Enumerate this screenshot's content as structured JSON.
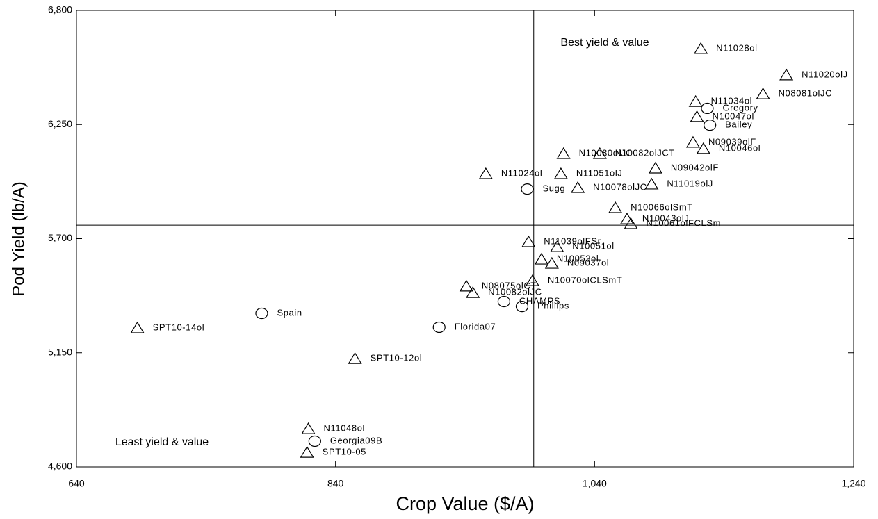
{
  "chart_data": {
    "type": "scatter",
    "xlabel": "Crop Value ($/A)",
    "ylabel": "Pod Yield (lb/A)",
    "annotations": [
      "Best yield & value",
      "Least yield & value"
    ],
    "xlim": [
      640,
      1240
    ],
    "xticks": [
      640,
      840,
      {
        "value": 1040,
        "label": "1,040"
      },
      {
        "value": 1240,
        "label": "1,240"
      }
    ],
    "ylim": [
      4600,
      6800
    ],
    "yticks": [
      {
        "value": 4600,
        "label": "4,600"
      },
      {
        "value": 5150,
        "label": "5,150"
      },
      {
        "value": 5700,
        "label": "5,700"
      },
      {
        "value": 6250,
        "label": "6,250"
      },
      {
        "value": 6800,
        "label": "6,800"
      }
    ],
    "vline": 993,
    "hline": 5765,
    "series": [
      {
        "marker": "triangle",
        "color": "#000000",
        "labels": [
          "N11028ol",
          "N11020olJ",
          "N08081olJC",
          "N11034ol",
          "N10047ol",
          "N09039olF",
          "N10046ol",
          "N10080olJC",
          "N10082olJCT",
          "N09042olF",
          "N11024ol",
          "N11051olJ",
          "N11019olJ",
          "N10078olJC",
          "N10066olSmT",
          "N10043olJ",
          "N10061olFCLSm",
          "N11039olFSr",
          "N10051ol",
          "N10053ol",
          "N09037ol",
          "N10070olCLSmT",
          "N08075olCT",
          "N10082olJC",
          "SPT10-14ol",
          "SPT10-12ol",
          "N11048ol",
          "SPT10-05"
        ],
        "x": [
          1122,
          1188,
          1170,
          1118,
          1119,
          1116,
          1124,
          1016,
          1044,
          1087,
          956,
          1014,
          1084,
          1027,
          1056,
          1065,
          1068,
          989,
          1011,
          999,
          1007,
          992,
          941,
          946,
          687,
          855,
          819,
          818
        ],
        "values": [
          6616,
          6489,
          6398,
          6361,
          6288,
          6164,
          6134,
          6110,
          6110,
          6040,
          6013,
          6013,
          5963,
          5946,
          5849,
          5795,
          5772,
          5685,
          5661,
          5601,
          5581,
          5497,
          5471,
          5440,
          5270,
          5122,
          4784,
          4670
        ]
      },
      {
        "marker": "circle",
        "color": "#000000",
        "labels": [
          "Gregory",
          "Bailey",
          "Sugg",
          "CHAMPS",
          "Phillips",
          "Spain",
          "Florida07",
          "Georgia09B"
        ],
        "x": [
          1127,
          1129,
          988,
          970,
          984,
          783,
          920,
          824
        ],
        "values": [
          6328,
          6247,
          5939,
          5397,
          5373,
          5340,
          5273,
          4724
        ]
      }
    ]
  }
}
